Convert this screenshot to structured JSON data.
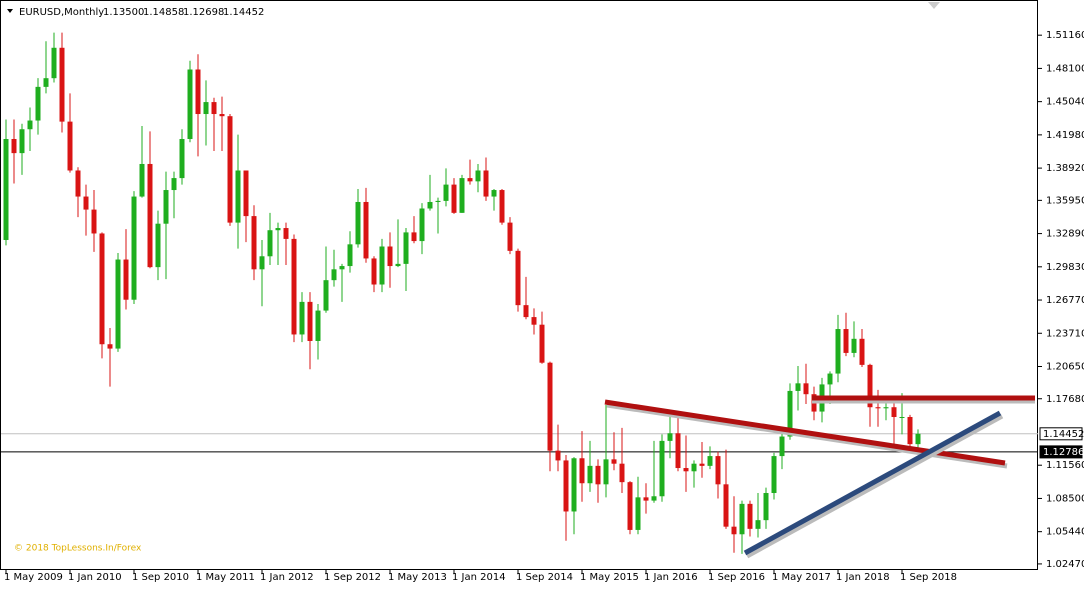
{
  "chart_data": {
    "type": "candlestick",
    "title": "EURUSD,Monthly",
    "quote": [
      "1.13500",
      "1.14858",
      "1.12698",
      "1.14452"
    ],
    "watermark": "© 2018 TopLessons.In/Forex",
    "categories": [
      "1 May 2009",
      null,
      null,
      null,
      null,
      null,
      null,
      null,
      "1 Jan 2010",
      null,
      null,
      null,
      null,
      null,
      null,
      null,
      "1 Sep 2010",
      null,
      null,
      null,
      null,
      null,
      null,
      null,
      "1 May 2011",
      null,
      null,
      null,
      null,
      null,
      null,
      null,
      "1 Jan 2012",
      null,
      null,
      null,
      null,
      null,
      null,
      null,
      "1 Sep 2012",
      null,
      null,
      null,
      null,
      null,
      null,
      null,
      "1 May 2013",
      null,
      null,
      null,
      null,
      null,
      null,
      null,
      "1 Jan 2014",
      null,
      null,
      null,
      null,
      null,
      null,
      null,
      "1 Sep 2014",
      null,
      null,
      null,
      null,
      null,
      null,
      null,
      "1 May 2015",
      null,
      null,
      null,
      null,
      null,
      null,
      null,
      "1 Jan 2016",
      null,
      null,
      null,
      null,
      null,
      null,
      null,
      "1 Sep 2016",
      null,
      null,
      null,
      null,
      null,
      null,
      null,
      "1 May 2017",
      null,
      null,
      null,
      null,
      null,
      null,
      null,
      "1 Jan 2018",
      null,
      null,
      null,
      null,
      null,
      null,
      null,
      "1 Sep 2018",
      null,
      null
    ],
    "open": [
      1.323,
      1.416,
      1.403,
      1.425,
      1.433,
      1.464,
      1.472,
      1.5,
      1.432,
      1.387,
      1.363,
      1.351,
      1.329,
      1.227,
      1.223,
      1.305,
      1.268,
      1.363,
      1.393,
      1.298,
      1.338,
      1.369,
      1.38,
      1.416,
      1.48,
      1.439,
      1.45,
      1.439,
      1.437,
      1.339,
      1.387,
      1.345,
      1.296,
      1.308,
      1.332,
      1.334,
      1.324,
      1.236,
      1.266,
      1.23,
      1.258,
      1.286,
      1.296,
      1.299,
      1.319,
      1.358,
      1.306,
      1.282,
      1.317,
      1.299,
      1.301,
      1.33,
      1.322,
      1.352,
      1.358,
      1.359,
      1.374,
      1.348,
      1.38,
      1.377,
      1.387,
      1.363,
      1.369,
      1.339,
      1.313,
      1.263,
      1.252,
      1.245,
      1.21,
      1.129,
      1.12,
      1.073,
      1.122,
      1.099,
      1.115,
      1.098,
      1.121,
      1.117,
      1.1,
      1.056,
      1.086,
      1.083,
      1.087,
      1.138,
      1.145,
      1.113,
      1.11,
      1.117,
      1.115,
      1.124,
      1.098,
      1.059,
      1.052,
      1.08,
      1.057,
      1.065,
      1.09,
      1.124,
      1.142,
      1.184,
      1.191,
      1.181,
      1.165,
      1.19,
      1.2,
      1.241,
      1.219,
      1.232,
      1.208,
      1.169,
      1.168,
      1.169,
      1.16,
      1.16,
      1.135
    ],
    "high": [
      1.434,
      1.434,
      1.43,
      1.445,
      1.472,
      1.506,
      1.514,
      1.514,
      1.458,
      1.39,
      1.374,
      1.369,
      1.33,
      1.242,
      1.311,
      1.333,
      1.368,
      1.428,
      1.423,
      1.35,
      1.386,
      1.386,
      1.425,
      1.488,
      1.494,
      1.47,
      1.454,
      1.455,
      1.439,
      1.42,
      1.387,
      1.355,
      1.323,
      1.348,
      1.339,
      1.339,
      1.328,
      1.275,
      1.275,
      1.264,
      1.317,
      1.314,
      1.301,
      1.331,
      1.37,
      1.371,
      1.308,
      1.324,
      1.33,
      1.342,
      1.334,
      1.345,
      1.357,
      1.383,
      1.362,
      1.389,
      1.38,
      1.383,
      1.397,
      1.393,
      1.399,
      1.37,
      1.37,
      1.344,
      1.315,
      1.289,
      1.26,
      1.257,
      1.211,
      1.153,
      1.125,
      1.123,
      1.147,
      1.138,
      1.121,
      1.171,
      1.146,
      1.15,
      1.101,
      1.105,
      1.099,
      1.138,
      1.144,
      1.162,
      1.161,
      1.143,
      1.12,
      1.137,
      1.133,
      1.128,
      1.13,
      1.087,
      1.083,
      1.083,
      1.09,
      1.095,
      1.127,
      1.145,
      1.191,
      1.207,
      1.209,
      1.188,
      1.196,
      1.202,
      1.254,
      1.256,
      1.248,
      1.241,
      1.209,
      1.185,
      1.179,
      1.173,
      1.182,
      1.162,
      1.14858
    ],
    "low": [
      1.318,
      1.375,
      1.383,
      1.405,
      1.42,
      1.458,
      1.468,
      1.422,
      1.385,
      1.344,
      1.327,
      1.312,
      1.214,
      1.188,
      1.22,
      1.259,
      1.264,
      1.362,
      1.297,
      1.286,
      1.287,
      1.343,
      1.374,
      1.413,
      1.4,
      1.41,
      1.405,
      1.405,
      1.336,
      1.315,
      1.321,
      1.286,
      1.262,
      1.3,
      1.3,
      1.3,
      1.229,
      1.229,
      1.204,
      1.213,
      1.256,
      1.28,
      1.266,
      1.293,
      1.316,
      1.302,
      1.275,
      1.275,
      1.279,
      1.298,
      1.276,
      1.32,
      1.31,
      1.35,
      1.329,
      1.354,
      1.347,
      1.348,
      1.374,
      1.367,
      1.359,
      1.35,
      1.337,
      1.31,
      1.257,
      1.25,
      1.236,
      1.209,
      1.11,
      1.11,
      1.046,
      1.052,
      1.082,
      1.091,
      1.081,
      1.086,
      1.111,
      1.09,
      1.052,
      1.052,
      1.071,
      1.081,
      1.082,
      1.122,
      1.11,
      1.091,
      1.095,
      1.104,
      1.112,
      1.085,
      1.057,
      1.035,
      1.034,
      1.05,
      1.049,
      1.057,
      1.084,
      1.112,
      1.139,
      1.166,
      1.172,
      1.157,
      1.155,
      1.172,
      1.192,
      1.216,
      1.215,
      1.206,
      1.151,
      1.151,
      1.157,
      1.13,
      1.144,
      1.13,
      1.12698
    ],
    "close": [
      1.416,
      1.403,
      1.425,
      1.433,
      1.464,
      1.472,
      1.5,
      1.432,
      1.387,
      1.363,
      1.351,
      1.329,
      1.227,
      1.223,
      1.305,
      1.268,
      1.363,
      1.393,
      1.298,
      1.338,
      1.369,
      1.38,
      1.416,
      1.48,
      1.439,
      1.45,
      1.439,
      1.437,
      1.339,
      1.387,
      1.345,
      1.296,
      1.308,
      1.332,
      1.334,
      1.324,
      1.236,
      1.266,
      1.23,
      1.258,
      1.286,
      1.296,
      1.299,
      1.319,
      1.358,
      1.306,
      1.282,
      1.317,
      1.299,
      1.301,
      1.33,
      1.322,
      1.352,
      1.358,
      1.359,
      1.374,
      1.348,
      1.38,
      1.377,
      1.387,
      1.363,
      1.369,
      1.339,
      1.313,
      1.263,
      1.252,
      1.245,
      1.21,
      1.129,
      1.12,
      1.073,
      1.122,
      1.099,
      1.115,
      1.098,
      1.121,
      1.117,
      1.1,
      1.056,
      1.086,
      1.083,
      1.087,
      1.138,
      1.145,
      1.113,
      1.11,
      1.117,
      1.115,
      1.124,
      1.098,
      1.059,
      1.052,
      1.08,
      1.057,
      1.065,
      1.09,
      1.124,
      1.142,
      1.184,
      1.191,
      1.181,
      1.165,
      1.19,
      1.2,
      1.241,
      1.219,
      1.232,
      1.208,
      1.169,
      1.168,
      1.169,
      1.16,
      1.16,
      1.135,
      1.14452
    ],
    "up_color": "#1fae1f",
    "down_color": "#d91414",
    "ylim": [
      1.0191,
      1.544
    ],
    "yticks": [
      {
        "value": 1.5116,
        "label": "1.51160"
      },
      {
        "value": 1.481,
        "label": "1.48100"
      },
      {
        "value": 1.4504,
        "label": "1.45040"
      },
      {
        "value": 1.4198,
        "label": "1.41980"
      },
      {
        "value": 1.3892,
        "label": "1.38920"
      },
      {
        "value": 1.3595,
        "label": "1.35950"
      },
      {
        "value": 1.3289,
        "label": "1.32890"
      },
      {
        "value": 1.2983,
        "label": "1.29830"
      },
      {
        "value": 1.2677,
        "label": "1.26770"
      },
      {
        "value": 1.2371,
        "label": "1.23710"
      },
      {
        "value": 1.2065,
        "label": "1.20650"
      },
      {
        "value": 1.1768,
        "label": "1.17680"
      },
      {
        "value": 1.1156,
        "label": "1.11560"
      },
      {
        "value": 1.085,
        "label": "1.08500"
      },
      {
        "value": 1.0544,
        "label": "1.05440"
      },
      {
        "value": 1.0247,
        "label": "1.02470"
      }
    ],
    "price_lines": [
      {
        "value": 1.14452,
        "color": "#c0c0c0"
      },
      {
        "value": 1.12786,
        "color": "#000000"
      }
    ]
  }
}
